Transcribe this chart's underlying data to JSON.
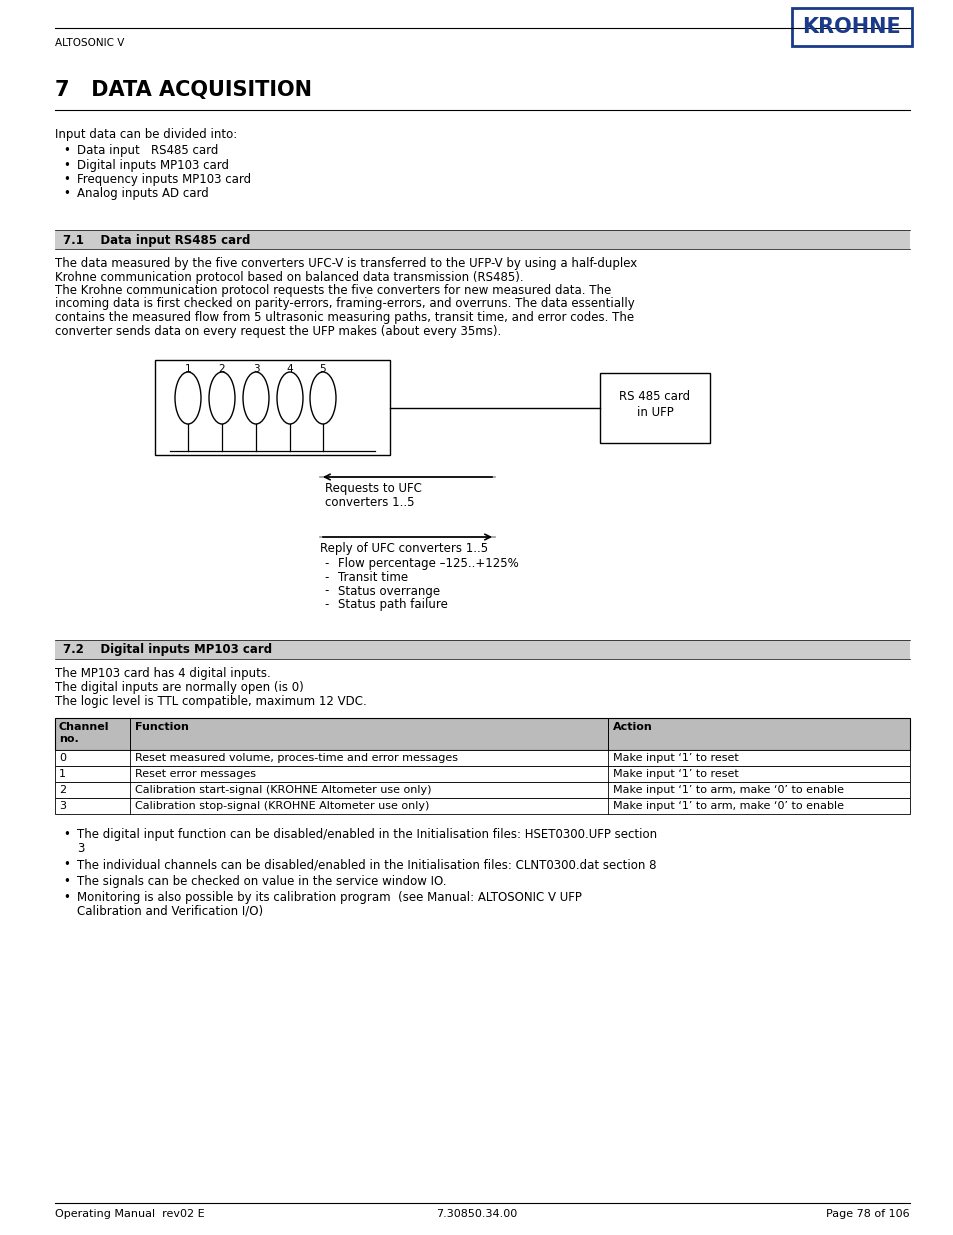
{
  "page_bg": "#ffffff",
  "header_company": "ALTOSONIC V",
  "logo_text": "KROHNE",
  "chapter_title": "7   DATA ACQUISITION",
  "intro_text": "Input data can be divided into:",
  "bullet_items": [
    "Data input   RS485 card",
    "Digital inputs MP103 card",
    "Frequency inputs MP103 card",
    "Analog inputs AD card"
  ],
  "section1_title": "7.1    Data input RS485 card",
  "section1_body_lines": [
    "The data measured by the five converters UFC-V is transferred to the UFP-V by using a half-duplex",
    "Krohne communication protocol based on balanced data transmission (RS485).",
    "The Krohne communication protocol requests the five converters for new measured data. The",
    "incoming data is first checked on parity-errors, framing-errors, and overruns. The data essentially",
    "contains the measured flow from 5 ultrasonic measuring paths, transit time, and error codes. The",
    "converter sends data on every request the UFP makes (about every 35ms)."
  ],
  "arrow1_label1": "Requests to UFC",
  "arrow1_label2": "converters 1..5",
  "rs485_label1": "RS 485 card",
  "rs485_label2": "in UFP",
  "arrow2_label": "Reply of UFC converters 1..5",
  "reply_items": [
    "Flow percentage –125..+125%",
    "Transit time",
    "Status overrange",
    "Status path failure"
  ],
  "section2_title": "7.2    Digital inputs MP103 card",
  "section2_body1": "The MP103 card has 4 digital inputs.",
  "section2_body2": "The digital inputs are normally open (is 0)",
  "section2_body3": "The logic level is TTL compatible, maximum 12 VDC.",
  "table_rows": [
    [
      "0",
      "Reset measured volume, proces-time and error messages",
      "Make input ‘1’ to reset"
    ],
    [
      "1",
      "Reset error messages",
      "Make input ‘1’ to reset"
    ],
    [
      "2",
      "Calibration start-signal (KROHNE Altometer use only)",
      "Make input ‘1’ to arm, make ‘0’ to enable"
    ],
    [
      "3",
      "Calibration stop-signal (KROHNE Altometer use only)",
      "Make input ‘1’ to arm, make ‘0’ to enable"
    ]
  ],
  "section2_bullets": [
    [
      "The digital input function can be disabled/enabled in the Initialisation files: HSET0300.UFP section",
      "3"
    ],
    [
      "The individual channels can be disabled/enabled in the Initialisation files: CLNT0300.dat section 8"
    ],
    [
      "The signals can be checked on value in the service window IO."
    ],
    [
      "Monitoring is also possible by its calibration program  (see Manual: ALTOSONIC V UFP",
      "Calibration and Verification I/O)"
    ]
  ],
  "footer_left": "Operating Manual  rev02 E",
  "footer_center": "7.30850.34.00",
  "footer_right": "Page 78 of 106",
  "section_bg": "#cccccc",
  "table_header_bg": "#bbbbbb",
  "krohne_blue": "#1a3a8a",
  "text_color": "#000000"
}
